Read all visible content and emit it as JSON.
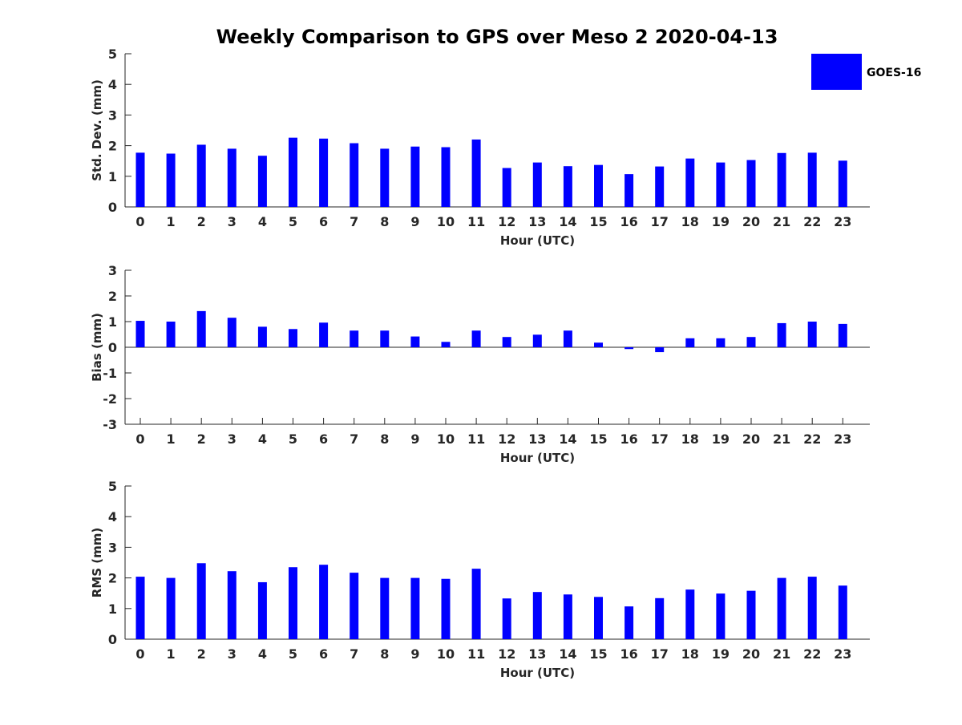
{
  "figure": {
    "title": "Weekly Comparison to GPS over Meso 2 2020-04-13",
    "legend": {
      "label": "GOES-16",
      "color": "#0000ff",
      "placement": "top-right"
    }
  },
  "chart_data": [
    {
      "type": "bar",
      "id": "std",
      "title": "Weekly Comparison to GPS over Meso 2 2020-04-13",
      "xlabel": "Hour (UTC)",
      "ylabel": "Std. Dev. (mm)",
      "ylim": [
        0,
        5
      ],
      "yticks": [
        0,
        1,
        2,
        3,
        4,
        5
      ],
      "categories": [
        "0",
        "1",
        "2",
        "3",
        "4",
        "5",
        "6",
        "7",
        "8",
        "9",
        "10",
        "11",
        "12",
        "13",
        "14",
        "15",
        "16",
        "17",
        "18",
        "19",
        "20",
        "21",
        "22",
        "23"
      ],
      "series": [
        {
          "name": "GOES-16",
          "color": "#0000ff",
          "values": [
            1.77,
            1.74,
            2.03,
            1.9,
            1.67,
            2.26,
            2.23,
            2.08,
            1.9,
            1.97,
            1.95,
            2.2,
            1.27,
            1.45,
            1.33,
            1.37,
            1.07,
            1.32,
            1.58,
            1.45,
            1.53,
            1.76,
            1.77,
            1.51
          ]
        }
      ]
    },
    {
      "type": "bar",
      "id": "bias",
      "xlabel": "Hour (UTC)",
      "ylabel": "Bias (mm)",
      "ylim": [
        -3,
        3
      ],
      "yticks": [
        -3,
        -2,
        -1,
        0,
        1,
        2,
        3
      ],
      "categories": [
        "0",
        "1",
        "2",
        "3",
        "4",
        "5",
        "6",
        "7",
        "8",
        "9",
        "10",
        "11",
        "12",
        "13",
        "14",
        "15",
        "16",
        "17",
        "18",
        "19",
        "20",
        "21",
        "22",
        "23"
      ],
      "series": [
        {
          "name": "GOES-16",
          "color": "#0000ff",
          "values": [
            1.03,
            1.0,
            1.41,
            1.15,
            0.8,
            0.71,
            0.96,
            0.65,
            0.65,
            0.42,
            0.21,
            0.65,
            0.4,
            0.49,
            0.65,
            0.18,
            -0.07,
            -0.19,
            0.35,
            0.35,
            0.4,
            0.94,
            1.0,
            0.91
          ]
        }
      ]
    },
    {
      "type": "bar",
      "id": "rms",
      "xlabel": "Hour (UTC)",
      "ylabel": "RMS (mm)",
      "ylim": [
        0,
        5
      ],
      "yticks": [
        0,
        1,
        2,
        3,
        4,
        5
      ],
      "categories": [
        "0",
        "1",
        "2",
        "3",
        "4",
        "5",
        "6",
        "7",
        "8",
        "9",
        "10",
        "11",
        "12",
        "13",
        "14",
        "15",
        "16",
        "17",
        "18",
        "19",
        "20",
        "21",
        "22",
        "23"
      ],
      "series": [
        {
          "name": "GOES-16",
          "color": "#0000ff",
          "values": [
            2.04,
            2.0,
            2.48,
            2.22,
            1.86,
            2.35,
            2.43,
            2.17,
            2.0,
            2.0,
            1.97,
            2.3,
            1.33,
            1.54,
            1.46,
            1.38,
            1.07,
            1.34,
            1.62,
            1.49,
            1.58,
            2.0,
            2.04,
            1.75
          ]
        }
      ]
    }
  ]
}
